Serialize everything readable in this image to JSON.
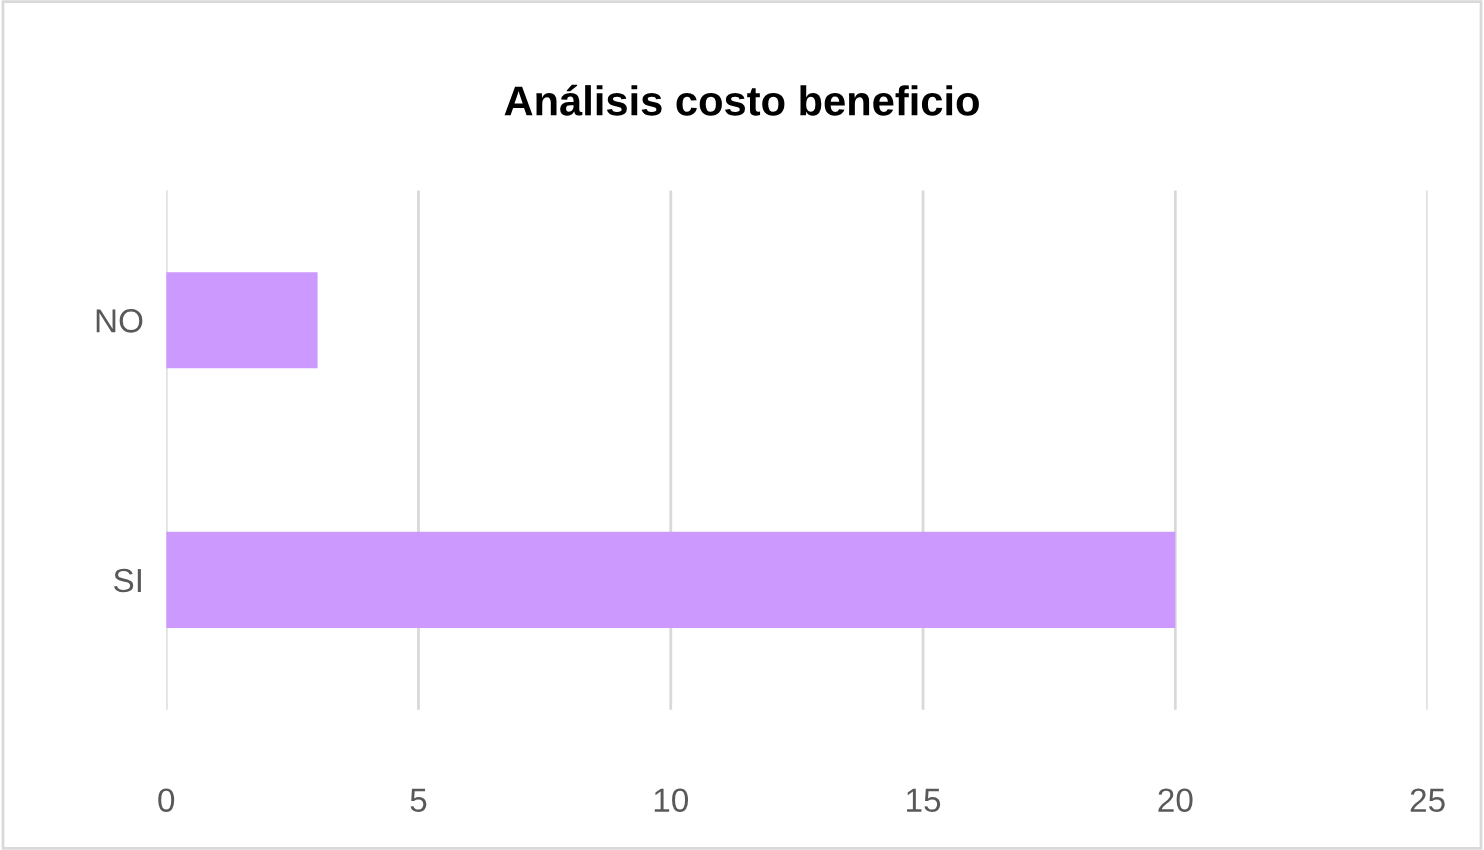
{
  "chart_data": {
    "type": "bar",
    "orientation": "horizontal",
    "title": "Análisis costo beneficio",
    "categories": [
      "NO",
      "SI"
    ],
    "values": [
      3,
      20
    ],
    "color": "#cc99ff",
    "xlim": [
      0,
      25
    ],
    "xticks": [
      0,
      5,
      10,
      15,
      20,
      25
    ],
    "grid": "x",
    "legend": false
  }
}
